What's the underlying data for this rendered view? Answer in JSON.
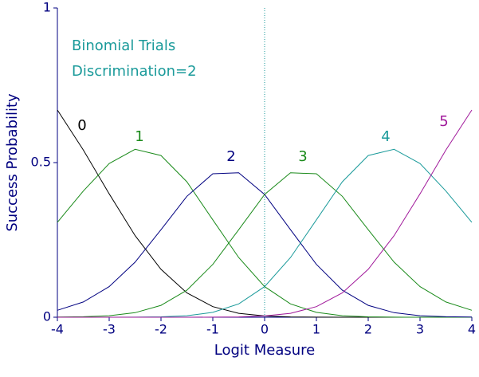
{
  "chart_data": {
    "type": "line",
    "annotations": [
      "Binomial Trials",
      "Discrimination=2"
    ],
    "x_label": "Logit Measure",
    "y_label": "Success Probability",
    "x": [
      -4,
      -3.5,
      -3,
      -2.5,
      -2,
      -1.5,
      -1,
      -0.5,
      0,
      0.5,
      1,
      1.5,
      2,
      2.5,
      3,
      3.5,
      4
    ],
    "series": [
      {
        "name": "0",
        "color": "#000000",
        "values": [
          0.67,
          0.541,
          0.399,
          0.264,
          0.155,
          0.0786,
          0.0343,
          0.0127,
          0.004,
          0.001,
          0.0002,
          0,
          0,
          0,
          0,
          0,
          0
        ]
      },
      {
        "name": "1",
        "color": "#1a8a1a",
        "values": [
          0.307,
          0.408,
          0.497,
          0.543,
          0.523,
          0.438,
          0.315,
          0.193,
          0.099,
          0.043,
          0.0157,
          0.0049,
          0.0013,
          0.0003,
          0.0001,
          0,
          0
        ]
      },
      {
        "name": "2",
        "color": "#000080",
        "values": [
          0.0225,
          0.0493,
          0.099,
          0.178,
          0.283,
          0.391,
          0.464,
          0.467,
          0.397,
          0.283,
          0.171,
          0.0873,
          0.0383,
          0.0146,
          0.0049,
          0.0015,
          0.0004
        ]
      },
      {
        "name": "3",
        "color": "#1a8a1a",
        "values": [
          0.0004,
          0.0015,
          0.0049,
          0.0146,
          0.0383,
          0.0873,
          0.171,
          0.283,
          0.397,
          0.467,
          0.464,
          0.391,
          0.283,
          0.178,
          0.099,
          0.0493,
          0.0225
        ]
      },
      {
        "name": "4",
        "color": "#1a9a9a",
        "values": [
          0,
          0,
          0.0001,
          0.0003,
          0.0013,
          0.0049,
          0.0157,
          0.043,
          0.099,
          0.193,
          0.315,
          0.438,
          0.523,
          0.543,
          0.497,
          0.408,
          0.307
        ]
      },
      {
        "name": "5",
        "color": "#a0189a",
        "values": [
          0,
          0,
          0,
          0,
          0,
          0,
          0.0002,
          0.001,
          0.004,
          0.0127,
          0.0343,
          0.0786,
          0.155,
          0.264,
          0.399,
          0.541,
          0.67
        ]
      }
    ],
    "xlim": [
      -4,
      4
    ],
    "xticks": [
      -4,
      -3,
      -2,
      -1,
      0,
      1,
      2,
      3,
      4
    ],
    "ylim": [
      0,
      1
    ],
    "yticks": [
      0,
      0.5,
      1
    ],
    "reference_line_x": 0
  }
}
